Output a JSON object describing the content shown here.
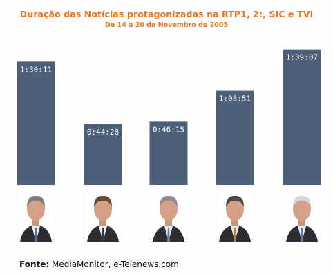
{
  "title": "Duração das Notícias protagonizadas na RTP1, 2:, SIC e TVI",
  "subtitle": "De 14 a 20 de Novembro de 2005",
  "source_prefix": "Fonte:",
  "source_text": "MediaMonitor, e-Telenews.com",
  "colors": {
    "title": "#e8761e",
    "bar": "#4e6079",
    "bar_label": "#ffffff"
  },
  "chart_data": {
    "type": "bar",
    "categories": [
      "",
      "",
      "",
      "",
      ""
    ],
    "values_seconds": [
      5411,
      2668,
      2775,
      4131,
      5947
    ],
    "value_labels": [
      "1:30:11",
      "0:44:28",
      "0:46:15",
      "1:08:51",
      "1:39:07"
    ],
    "title": "Duração das Notícias protagonizadas na RTP1, 2:, SIC e TVI",
    "subtitle": "De 14 a 20 de Novembro de 2005",
    "xlabel": "",
    "ylabel": "",
    "ylim": [
      0,
      6300
    ],
    "grid": false,
    "legend": "none"
  }
}
